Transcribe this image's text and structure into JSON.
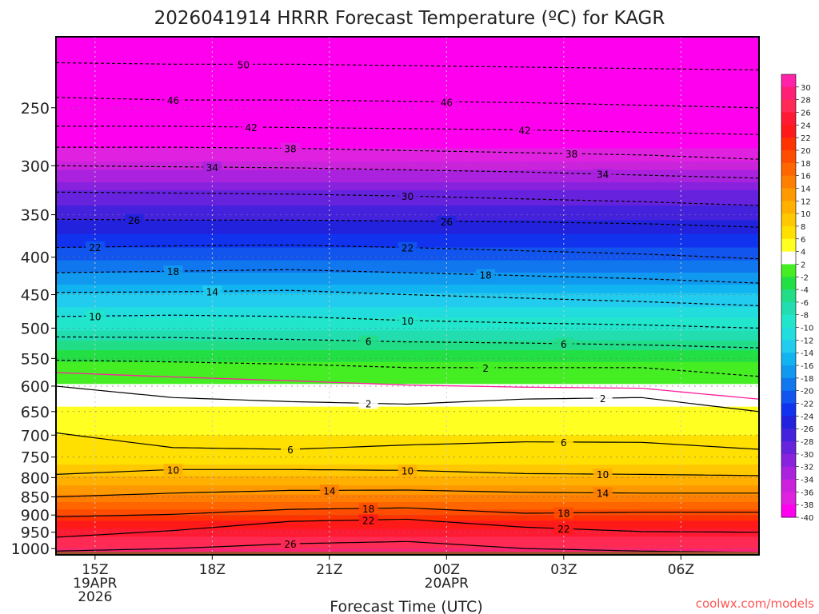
{
  "chart_data": {
    "type": "heatmap",
    "title": "2026041914 HRRR Forecast Temperature (ºC) for KAGR",
    "xlabel": "Forecast Time (UTC)",
    "ylabel": "",
    "x_ticks": [
      {
        "hour": 1,
        "lines": [
          "15Z",
          "19APR",
          "2026"
        ]
      },
      {
        "hour": 4,
        "lines": [
          "18Z"
        ]
      },
      {
        "hour": 7,
        "lines": [
          "21Z"
        ]
      },
      {
        "hour": 10,
        "lines": [
          "00Z",
          "20APR"
        ]
      },
      {
        "hour": 13,
        "lines": [
          "03Z"
        ]
      },
      {
        "hour": 16,
        "lines": [
          "06Z"
        ]
      }
    ],
    "xlim": [
      0,
      18
    ],
    "y_ticks": [
      250,
      300,
      350,
      400,
      450,
      500,
      550,
      600,
      650,
      700,
      750,
      800,
      850,
      900,
      950,
      1000
    ],
    "ylim_hpa": [
      200,
      1020
    ],
    "ground_pressure_hpa": 1010,
    "colorbar": {
      "labels": [
        "30",
        "28",
        "26",
        "24",
        "22",
        "20",
        "18",
        "16",
        "14",
        "12",
        "10",
        "8",
        "6",
        "4",
        "2",
        "-2",
        "-4",
        "-6",
        "-8",
        "-10",
        "-12",
        "-14",
        "-16",
        "-18",
        "-20",
        "-22",
        "-24",
        "-26",
        "-28",
        "-30",
        "-32",
        "-34",
        "-36",
        "-38",
        "-40"
      ],
      "bins": [
        {
          "range": ">28",
          "color": "#ff22aa"
        },
        {
          "range": "26-28",
          "color": "#ff1f77"
        },
        {
          "range": "24-26",
          "color": "#ff2a55"
        },
        {
          "range": "22-24",
          "color": "#ff1a33"
        },
        {
          "range": "20-22",
          "color": "#ff1a1a"
        },
        {
          "range": "18-20",
          "color": "#ff3300"
        },
        {
          "range": "16-18",
          "color": "#ff4d00"
        },
        {
          "range": "14-16",
          "color": "#ff6600"
        },
        {
          "range": "12-14",
          "color": "#ff7f00"
        },
        {
          "range": "10-12",
          "color": "#ff9900"
        },
        {
          "range": "8-10",
          "color": "#ffb000"
        },
        {
          "range": "6-8",
          "color": "#ffc800"
        },
        {
          "range": "4-6",
          "color": "#ffe000"
        },
        {
          "range": "2-4",
          "color": "#ffff22"
        },
        {
          "range": "-2-2",
          "color": "#ffffff"
        },
        {
          "range": "-4--2",
          "color": "#44ee22"
        },
        {
          "range": "-6--4",
          "color": "#22e044"
        },
        {
          "range": "-8--6",
          "color": "#22dd88"
        },
        {
          "range": "-10--8",
          "color": "#22ddb0"
        },
        {
          "range": "-12--10",
          "color": "#22e6cc"
        },
        {
          "range": "-14--12",
          "color": "#22dddd"
        },
        {
          "range": "-16--14",
          "color": "#22ccee"
        },
        {
          "range": "-18--16",
          "color": "#11b4f0"
        },
        {
          "range": "-20--18",
          "color": "#1199f0"
        },
        {
          "range": "-22--20",
          "color": "#1177ee"
        },
        {
          "range": "-24--22",
          "color": "#1155ee"
        },
        {
          "range": "-26--24",
          "color": "#1133ee"
        },
        {
          "range": "-28--26",
          "color": "#2222dd"
        },
        {
          "range": "-30--28",
          "color": "#4422dd"
        },
        {
          "range": "-32--30",
          "color": "#6622dd"
        },
        {
          "range": "-34--32",
          "color": "#8822dd"
        },
        {
          "range": "-36--34",
          "color": "#aa22dd"
        },
        {
          "range": "-38--36",
          "color": "#cc22dd"
        },
        {
          "range": "-40--38",
          "color": "#e022e0"
        },
        {
          "range": "<-40",
          "color": "#ff00ee"
        }
      ]
    },
    "temperature_profile": [
      {
        "p": 200,
        "t": -58
      },
      {
        "p": 220,
        "t": -54
      },
      {
        "p": 245,
        "t": -48
      },
      {
        "p": 265,
        "t": -42
      },
      {
        "p": 300,
        "t": -35
      },
      {
        "p": 325,
        "t": -30
      },
      {
        "p": 355,
        "t": -26
      },
      {
        "p": 390,
        "t": -22
      },
      {
        "p": 420,
        "t": -18
      },
      {
        "p": 450,
        "t": -14
      },
      {
        "p": 485,
        "t": -10
      },
      {
        "p": 520,
        "t": -6
      },
      {
        "p": 555,
        "t": -2
      },
      {
        "p": 595,
        "t": 2
      },
      {
        "p": 640,
        "t": 4
      },
      {
        "p": 700,
        "t": 6
      },
      {
        "p": 740,
        "t": 6
      },
      {
        "p": 795,
        "t": 10
      },
      {
        "p": 845,
        "t": 14
      },
      {
        "p": 885,
        "t": 18
      },
      {
        "p": 915,
        "t": 22
      },
      {
        "p": 965,
        "t": 26
      },
      {
        "p": 1000,
        "t": 28
      },
      {
        "p": 1020,
        "t": 30
      }
    ],
    "contours": [
      {
        "level": -50,
        "pressure_hpa": [
          217,
          218,
          218,
          219,
          220,
          221,
          222
        ],
        "labels": [
          {
            "hour": 4.8,
            "text": "50"
          }
        ]
      },
      {
        "level": -46,
        "pressure_hpa": [
          242,
          244,
          244,
          245,
          246,
          248,
          250
        ],
        "labels": [
          {
            "hour": 3,
            "text": "46"
          },
          {
            "hour": 10,
            "text": "46"
          }
        ]
      },
      {
        "level": -42,
        "pressure_hpa": [
          265,
          265,
          266,
          267,
          268,
          270,
          272
        ],
        "labels": [
          {
            "hour": 5,
            "text": "42"
          },
          {
            "hour": 12,
            "text": "42"
          }
        ]
      },
      {
        "level": -38,
        "pressure_hpa": [
          283,
          283,
          284,
          286,
          288,
          290,
          294
        ],
        "labels": [
          {
            "hour": 6,
            "text": "38"
          },
          {
            "hour": 13.2,
            "text": "38"
          }
        ]
      },
      {
        "level": -34,
        "pressure_hpa": [
          300,
          301,
          302,
          304,
          306,
          309,
          312
        ],
        "labels": [
          {
            "hour": 4,
            "text": "34"
          },
          {
            "hour": 14,
            "text": "34"
          }
        ]
      },
      {
        "level": -30,
        "pressure_hpa": [
          326,
          327,
          328,
          330,
          333,
          336,
          340
        ],
        "labels": [
          {
            "hour": 9,
            "text": "30"
          }
        ]
      },
      {
        "level": -26,
        "pressure_hpa": [
          355,
          356,
          356,
          357,
          358,
          360,
          364
        ],
        "labels": [
          {
            "hour": 2,
            "text": "26"
          },
          {
            "hour": 10,
            "text": "26"
          }
        ]
      },
      {
        "level": -22,
        "pressure_hpa": [
          388,
          386,
          385,
          388,
          392,
          396,
          402
        ],
        "labels": [
          {
            "hour": 1,
            "text": "22"
          },
          {
            "hour": 9,
            "text": "22"
          }
        ]
      },
      {
        "level": -18,
        "pressure_hpa": [
          420,
          418,
          416,
          420,
          424,
          428,
          434
        ],
        "labels": [
          {
            "hour": 3,
            "text": "18"
          },
          {
            "hour": 11,
            "text": "18"
          }
        ]
      },
      {
        "level": -14,
        "pressure_hpa": [
          447,
          446,
          444,
          450,
          455,
          460,
          466
        ],
        "labels": [
          {
            "hour": 4,
            "text": "14"
          }
        ]
      },
      {
        "level": -10,
        "pressure_hpa": [
          482,
          480,
          482,
          488,
          492,
          495,
          500
        ],
        "labels": [
          {
            "hour": 1,
            "text": "10"
          },
          {
            "hour": 9,
            "text": "10"
          }
        ]
      },
      {
        "level": -6,
        "pressure_hpa": [
          514,
          515,
          518,
          522,
          524,
          527,
          532
        ],
        "labels": [
          {
            "hour": 8,
            "text": "6"
          },
          {
            "hour": 13,
            "text": "6"
          }
        ]
      },
      {
        "level": -2,
        "pressure_hpa": [
          553,
          556,
          560,
          566,
          566,
          566,
          582
        ],
        "labels": [
          {
            "hour": 11,
            "text": "2"
          }
        ]
      },
      {
        "level": 2,
        "pressure_hpa": [
          600,
          622,
          630,
          635,
          625,
          622,
          650
        ],
        "labels": [
          {
            "hour": 8,
            "text": "2"
          },
          {
            "hour": 14,
            "text": "2"
          }
        ]
      },
      {
        "level": 6,
        "pressure_hpa": [
          695,
          728,
          732,
          722,
          715,
          716,
          732
        ],
        "labels": [
          {
            "hour": 6,
            "text": "6"
          },
          {
            "hour": 13,
            "text": "6"
          }
        ]
      },
      {
        "level": 10,
        "pressure_hpa": [
          792,
          780,
          780,
          782,
          790,
          792,
          795
        ],
        "labels": [
          {
            "hour": 3,
            "text": "10"
          },
          {
            "hour": 9,
            "text": "10"
          },
          {
            "hour": 14,
            "text": "10"
          }
        ]
      },
      {
        "level": 14,
        "pressure_hpa": [
          850,
          840,
          833,
          832,
          838,
          840,
          840
        ],
        "labels": [
          {
            "hour": 7,
            "text": "14"
          },
          {
            "hour": 14,
            "text": "14"
          }
        ]
      },
      {
        "level": 18,
        "pressure_hpa": [
          905,
          898,
          884,
          880,
          895,
          892,
          892
        ],
        "labels": [
          {
            "hour": 8,
            "text": "18"
          },
          {
            "hour": 13,
            "text": "18"
          }
        ]
      },
      {
        "level": 22,
        "pressure_hpa": [
          965,
          945,
          918,
          912,
          935,
          948,
          950
        ],
        "labels": [
          {
            "hour": 8,
            "text": "22"
          },
          {
            "hour": 13,
            "text": "22"
          }
        ]
      },
      {
        "level": 26,
        "pressure_hpa": [
          1008,
          1000,
          985,
          978,
          1000,
          1008,
          1012
        ],
        "labels": [
          {
            "hour": 6,
            "text": "26"
          }
        ]
      }
    ],
    "contour_hours": [
      0,
      3,
      6,
      9,
      12,
      15,
      18
    ]
  },
  "watermark": "coolwx.com/models"
}
